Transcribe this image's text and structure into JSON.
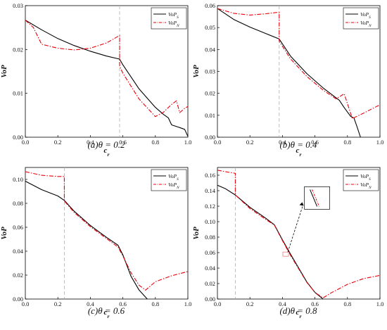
{
  "colors": {
    "solid": "#000000",
    "dashdot": "#e8000b",
    "vline": "#b0b0b0",
    "zoom": "#e88080"
  },
  "chart_data": [
    {
      "type": "line",
      "caption": "(a)θ = 0.2",
      "xlabel": "c_r",
      "ylabel": "VoP",
      "xlim": [
        0,
        1
      ],
      "ylim": [
        0,
        0.03
      ],
      "xticks": [
        "0.0",
        "0.2",
        "0.4",
        "0.6",
        "0.8",
        "1.0"
      ],
      "yticks": [
        "0.00",
        "0.01",
        "0.02",
        "0.03"
      ],
      "vline": 0.58,
      "legend": [
        "VoP_S",
        "VoP_N"
      ],
      "series": [
        {
          "name": "VoP_S",
          "style": "solid",
          "x": [
            0,
            0.1,
            0.2,
            0.3,
            0.4,
            0.5,
            0.58,
            0.6,
            0.7,
            0.8,
            0.85,
            0.88,
            0.9,
            0.95,
            0.98,
            1.0
          ],
          "y": [
            0.0267,
            0.0245,
            0.0225,
            0.0209,
            0.0196,
            0.0185,
            0.0178,
            0.0165,
            0.011,
            0.0068,
            0.0052,
            0.0044,
            0.0028,
            0.0022,
            0.0018,
            0.0002
          ]
        },
        {
          "name": "VoP_N",
          "style": "dashdot",
          "x": [
            0,
            0.05,
            0.1,
            0.2,
            0.3,
            0.4,
            0.5,
            0.58,
            0.58,
            0.6,
            0.7,
            0.8,
            0.85,
            0.9,
            0.93,
            0.95,
            0.98,
            1.0
          ],
          "y": [
            0.0267,
            0.025,
            0.0212,
            0.0203,
            0.0199,
            0.0203,
            0.0215,
            0.0232,
            0.0162,
            0.0146,
            0.0087,
            0.0047,
            0.0057,
            0.0075,
            0.0083,
            0.0056,
            0.0066,
            0.007
          ]
        }
      ]
    },
    {
      "type": "line",
      "caption": "(b)θ = 0.4",
      "xlabel": "c_r",
      "ylabel": "VoP",
      "xlim": [
        0,
        1
      ],
      "ylim": [
        0,
        0.06
      ],
      "xticks": [
        "0.0",
        "0.2",
        "0.4",
        "0.6",
        "0.8",
        "1.0"
      ],
      "yticks": [
        "0.00",
        "0.01",
        "0.02",
        "0.03",
        "0.04",
        "0.05",
        "0.06"
      ],
      "vline": 0.38,
      "legend": [
        "VoP_S",
        "VoP_N"
      ],
      "series": [
        {
          "name": "VoP_S",
          "style": "solid",
          "x": [
            0,
            0.1,
            0.2,
            0.3,
            0.38,
            0.45,
            0.55,
            0.65,
            0.75,
            0.78,
            0.82,
            0.84,
            0.86,
            0.88
          ],
          "y": [
            0.0587,
            0.0537,
            0.0502,
            0.0472,
            0.0448,
            0.037,
            0.029,
            0.0225,
            0.0168,
            0.0135,
            0.0095,
            0.0088,
            0.0045,
            0.0
          ]
        },
        {
          "name": "VoP_N",
          "style": "dashdot",
          "x": [
            0,
            0.1,
            0.2,
            0.3,
            0.38,
            0.38,
            0.45,
            0.55,
            0.65,
            0.73,
            0.78,
            0.83,
            0.9,
            1.0
          ],
          "y": [
            0.0587,
            0.0565,
            0.0557,
            0.0563,
            0.057,
            0.0438,
            0.0357,
            0.0277,
            0.0215,
            0.0175,
            0.0198,
            0.0085,
            0.011,
            0.0148
          ]
        }
      ]
    },
    {
      "type": "line",
      "caption": "(c)θ = 0.6",
      "xlabel": "c_r",
      "ylabel": "VoP",
      "xlim": [
        0,
        1
      ],
      "ylim": [
        0,
        0.11
      ],
      "xticks": [
        "0.0",
        "0.2",
        "0.4",
        "0.6",
        "0.8",
        "1.0"
      ],
      "yticks": [
        "0.00",
        "0.02",
        "0.04",
        "0.06",
        "0.08",
        "0.10"
      ],
      "vline": 0.24,
      "legend": [
        "VoP_S",
        "VoP_N"
      ],
      "series": [
        {
          "name": "VoP_S",
          "style": "solid",
          "x": [
            0,
            0.1,
            0.2,
            0.24,
            0.3,
            0.4,
            0.5,
            0.57,
            0.6,
            0.65,
            0.7,
            0.75
          ],
          "y": [
            0.0985,
            0.0915,
            0.0862,
            0.0825,
            0.0735,
            0.0615,
            0.0515,
            0.045,
            0.037,
            0.019,
            0.0075,
            0.0
          ]
        },
        {
          "name": "VoP_N",
          "style": "dashdot",
          "x": [
            0,
            0.1,
            0.2,
            0.24,
            0.24,
            0.3,
            0.4,
            0.5,
            0.57,
            0.6,
            0.65,
            0.7,
            0.74,
            0.8,
            0.9,
            1.0
          ],
          "y": [
            0.1065,
            0.1035,
            0.1025,
            0.1025,
            0.082,
            0.0725,
            0.0605,
            0.0505,
            0.0435,
            0.036,
            0.022,
            0.0115,
            0.0075,
            0.0145,
            0.0195,
            0.023
          ]
        }
      ]
    },
    {
      "type": "line",
      "caption": "(d)θ = 0.8",
      "xlabel": "c_r",
      "ylabel": "VoP",
      "xlim": [
        0,
        1
      ],
      "ylim": [
        0,
        0.17
      ],
      "xticks": [
        "0.0",
        "0.2",
        "0.4",
        "0.6",
        "0.8",
        "1.0"
      ],
      "yticks": [
        "0.00",
        "0.02",
        "0.04",
        "0.06",
        "0.08",
        "0.10",
        "0.12",
        "0.14",
        "0.16"
      ],
      "vline": 0.11,
      "legend": [
        "VoP_S",
        "VoP_N"
      ],
      "series": [
        {
          "name": "VoP_S",
          "style": "solid",
          "x": [
            0,
            0.05,
            0.11,
            0.2,
            0.3,
            0.35,
            0.4,
            0.45,
            0.5,
            0.55,
            0.6,
            0.65
          ],
          "y": [
            0.147,
            0.1425,
            0.1345,
            0.1185,
            0.104,
            0.096,
            0.0765,
            0.058,
            0.04,
            0.022,
            0.0085,
            0.0
          ]
        },
        {
          "name": "VoP_N",
          "style": "dashdot",
          "x": [
            0,
            0.05,
            0.11,
            0.11,
            0.2,
            0.3,
            0.35,
            0.4,
            0.45,
            0.5,
            0.55,
            0.6,
            0.65,
            0.7,
            0.8,
            0.9,
            1.0
          ],
          "y": [
            0.1665,
            0.1645,
            0.1625,
            0.1345,
            0.117,
            0.1025,
            0.0955,
            0.0755,
            0.0565,
            0.039,
            0.0215,
            0.0085,
            0.0015,
            0.008,
            0.019,
            0.0265,
            0.0305
          ]
        }
      ]
    }
  ]
}
